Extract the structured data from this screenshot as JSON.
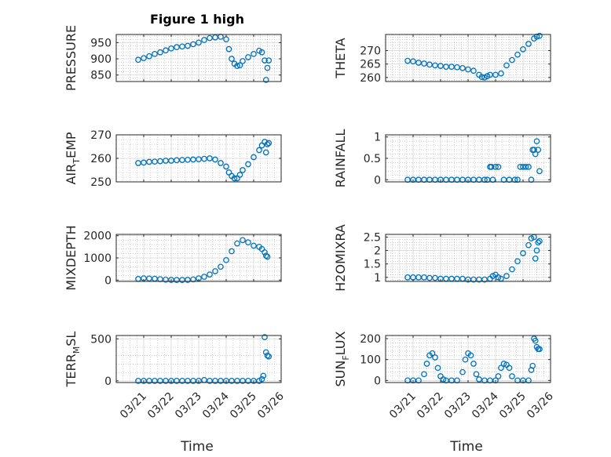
{
  "figure": {
    "title": "Figure 1 high"
  },
  "chart_data": [
    {
      "type": "scatter",
      "ylabel": "PRESSURE",
      "ylabel_sub": "",
      "ylabel_tail": "",
      "ylim": [
        830,
        975
      ],
      "yticks": [
        850,
        900,
        950
      ],
      "x": [
        0.8,
        1.0,
        1.2,
        1.4,
        1.6,
        1.8,
        2.0,
        2.2,
        2.4,
        2.6,
        2.8,
        3.0,
        3.2,
        3.4,
        3.6,
        3.8,
        4.0,
        4.1,
        4.2,
        4.3,
        4.4,
        4.5,
        4.6,
        4.8,
        5.0,
        5.2,
        5.3,
        5.4,
        5.45,
        5.5,
        5.55
      ],
      "y": [
        897,
        902,
        908,
        915,
        920,
        926,
        932,
        936,
        938,
        940,
        945,
        950,
        958,
        964,
        966,
        968,
        960,
        930,
        900,
        885,
        878,
        880,
        893,
        905,
        915,
        925,
        920,
        895,
        835,
        872,
        895
      ]
    },
    {
      "type": "scatter",
      "ylabel": "THETA",
      "ylabel_sub": "",
      "ylabel_tail": "",
      "ylim": [
        258.5,
        276
      ],
      "yticks": [
        260,
        265,
        270
      ],
      "x": [
        0.8,
        1.0,
        1.2,
        1.4,
        1.6,
        1.8,
        2.0,
        2.2,
        2.4,
        2.6,
        2.8,
        3.0,
        3.2,
        3.4,
        3.5,
        3.6,
        3.7,
        3.8,
        4.0,
        4.2,
        4.4,
        4.6,
        4.8,
        5.0,
        5.2,
        5.4,
        5.5,
        5.6
      ],
      "y": [
        266.2,
        266.0,
        265.5,
        265.2,
        264.8,
        264.5,
        264.3,
        264.0,
        264.0,
        263.8,
        263.5,
        263.0,
        262.5,
        261.0,
        260.2,
        260.0,
        260.5,
        261.0,
        261.0,
        261.5,
        264.5,
        266.5,
        268.5,
        270.5,
        272.5,
        274.5,
        275.2,
        275.5
      ]
    },
    {
      "type": "scatter",
      "ylabel": "AIR",
      "ylabel_sub": "T",
      "ylabel_tail": "EMP",
      "ylim": [
        250,
        270
      ],
      "yticks": [
        250,
        260,
        270
      ],
      "x": [
        0.8,
        1.0,
        1.2,
        1.4,
        1.6,
        1.8,
        2.0,
        2.2,
        2.4,
        2.6,
        2.8,
        3.0,
        3.2,
        3.4,
        3.6,
        3.8,
        4.0,
        4.1,
        4.2,
        4.3,
        4.4,
        4.5,
        4.6,
        4.8,
        5.0,
        5.2,
        5.3,
        5.4,
        5.45,
        5.5,
        5.55
      ],
      "y": [
        258.0,
        258.2,
        258.5,
        258.6,
        258.8,
        259.0,
        259.0,
        259.2,
        259.3,
        259.4,
        259.5,
        259.6,
        259.8,
        260.0,
        259.5,
        258.0,
        256.5,
        254.0,
        252.5,
        251.5,
        251.5,
        253.0,
        255.0,
        257.5,
        260.5,
        263.5,
        265.5,
        267.0,
        262.5,
        266.0,
        266.5
      ]
    },
    {
      "type": "scatter",
      "ylabel": "RAINFALL",
      "ylabel_sub": "",
      "ylabel_tail": "",
      "ylim": [
        -0.05,
        1.05
      ],
      "yticks": [
        0,
        0.5,
        1
      ],
      "ytick_labels": [
        "0",
        "0.5",
        "1"
      ],
      "x": [
        0.8,
        1.0,
        1.2,
        1.4,
        1.6,
        1.8,
        2.0,
        2.2,
        2.4,
        2.6,
        2.8,
        3.0,
        3.2,
        3.4,
        3.6,
        3.7,
        3.8,
        3.85,
        3.9,
        4.0,
        4.1,
        4.3,
        4.5,
        4.7,
        4.8,
        4.9,
        5.0,
        5.1,
        5.2,
        5.3,
        5.35,
        5.4,
        5.45,
        5.5,
        5.55,
        5.6
      ],
      "y": [
        0,
        0,
        0,
        0,
        0,
        0,
        0,
        0,
        0,
        0,
        0,
        0,
        0,
        0,
        0,
        0,
        0.3,
        0.3,
        0,
        0.3,
        0.3,
        0,
        0,
        0,
        0,
        0.3,
        0.3,
        0.3,
        0.3,
        0,
        0.7,
        0.7,
        0.6,
        0.9,
        0.7,
        0.2
      ]
    },
    {
      "type": "scatter",
      "ylabel": "MIXDEPTH",
      "ylabel_sub": "",
      "ylabel_tail": "",
      "ylim": [
        -60,
        2060
      ],
      "yticks": [
        0,
        1000,
        2000
      ],
      "x": [
        0.8,
        1.0,
        1.2,
        1.4,
        1.6,
        1.8,
        2.0,
        2.2,
        2.4,
        2.6,
        2.8,
        3.0,
        3.2,
        3.4,
        3.6,
        3.8,
        4.0,
        4.2,
        4.4,
        4.6,
        4.8,
        5.0,
        5.2,
        5.3,
        5.4,
        5.45,
        5.5
      ],
      "y": [
        50,
        80,
        70,
        60,
        40,
        20,
        10,
        5,
        5,
        10,
        30,
        80,
        150,
        250,
        400,
        600,
        900,
        1300,
        1650,
        1800,
        1700,
        1550,
        1500,
        1400,
        1250,
        1100,
        1050
      ]
    },
    {
      "type": "scatter",
      "ylabel": "H2OMIXRA",
      "ylabel_sub": "",
      "ylabel_tail": "",
      "ylim": [
        0.85,
        2.6
      ],
      "yticks": [
        1,
        1.5,
        2,
        2.5
      ],
      "ytick_labels": [
        "1",
        "1.5",
        "2",
        "2.5"
      ],
      "x": [
        0.8,
        1.0,
        1.2,
        1.4,
        1.6,
        1.8,
        2.0,
        2.2,
        2.4,
        2.6,
        2.8,
        3.0,
        3.2,
        3.4,
        3.6,
        3.8,
        3.9,
        4.0,
        4.1,
        4.2,
        4.4,
        4.6,
        4.8,
        5.0,
        5.2,
        5.3,
        5.4,
        5.45,
        5.5,
        5.55,
        5.6
      ],
      "y": [
        1.0,
        1.0,
        1.0,
        1.0,
        0.98,
        0.98,
        0.95,
        0.95,
        0.95,
        0.95,
        0.95,
        0.92,
        0.92,
        0.92,
        0.92,
        0.95,
        1.05,
        1.1,
        1.0,
        0.95,
        1.05,
        1.3,
        1.6,
        1.9,
        2.2,
        2.45,
        2.5,
        1.7,
        2.0,
        2.3,
        2.35
      ]
    },
    {
      "type": "scatter",
      "ylabel": "TERR",
      "ylabel_sub": "M",
      "ylabel_tail": "SL",
      "ylim": [
        -20,
        540
      ],
      "yticks": [
        0,
        500
      ],
      "x": [
        0.8,
        1.0,
        1.2,
        1.4,
        1.6,
        1.8,
        2.0,
        2.2,
        2.4,
        2.6,
        2.8,
        3.0,
        3.2,
        3.4,
        3.6,
        3.8,
        4.0,
        4.2,
        4.4,
        4.6,
        4.8,
        5.0,
        5.2,
        5.3,
        5.35,
        5.4,
        5.45,
        5.5,
        5.55
      ],
      "y": [
        0,
        0,
        0,
        0,
        0,
        0,
        0,
        0,
        0,
        0,
        0,
        0,
        10,
        0,
        0,
        0,
        0,
        0,
        0,
        0,
        0,
        0,
        0,
        20,
        60,
        520,
        340,
        300,
        290
      ]
    },
    {
      "type": "scatter",
      "ylabel": "SUN",
      "ylabel_sub": "F",
      "ylabel_tail": "LUX",
      "ylim": [
        -10,
        215
      ],
      "yticks": [
        0,
        100,
        200
      ],
      "x": [
        0.8,
        1.0,
        1.2,
        1.4,
        1.5,
        1.6,
        1.7,
        1.8,
        1.9,
        2.0,
        2.1,
        2.2,
        2.4,
        2.6,
        2.8,
        2.9,
        3.0,
        3.1,
        3.2,
        3.3,
        3.4,
        3.6,
        3.8,
        4.0,
        4.1,
        4.2,
        4.3,
        4.4,
        4.5,
        4.6,
        4.8,
        5.0,
        5.2,
        5.3,
        5.35,
        5.4,
        5.45,
        5.5,
        5.55,
        5.6
      ],
      "y": [
        0,
        0,
        0,
        30,
        80,
        120,
        130,
        110,
        60,
        20,
        5,
        0,
        0,
        0,
        40,
        100,
        130,
        120,
        80,
        30,
        5,
        0,
        0,
        0,
        20,
        60,
        80,
        75,
        60,
        20,
        0,
        0,
        0,
        50,
        70,
        200,
        190,
        160,
        150,
        150
      ]
    }
  ],
  "x_axis": {
    "label": "Time",
    "range": [
      0,
      6
    ],
    "ticks": [
      0,
      1,
      2,
      3,
      4,
      5,
      6
    ],
    "tick_labels": [
      "03/21",
      "03/22",
      "03/23",
      "03/24",
      "03/25",
      "03/26"
    ]
  },
  "style": {
    "marker_color": "#0072BD",
    "grid": true,
    "minor_grid": true
  }
}
